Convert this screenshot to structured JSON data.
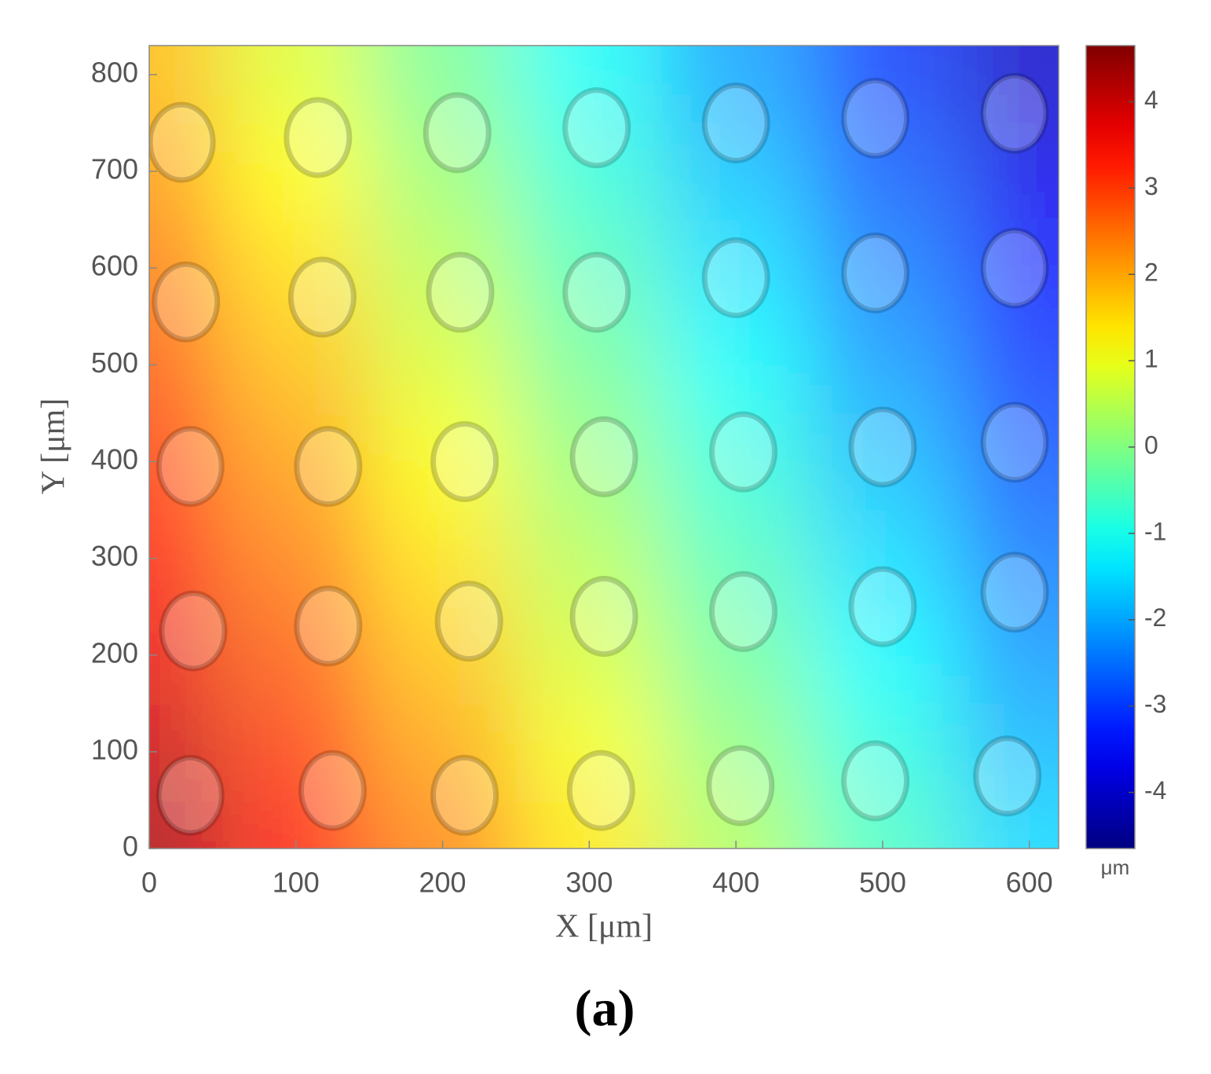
{
  "chart_data": {
    "type": "heatmap",
    "xlabel": "X [μm]",
    "ylabel": "Y [μm]",
    "caption": "(a)",
    "colorbar_label": "μm",
    "colormap": "jet",
    "x": [
      0,
      100,
      200,
      300,
      400,
      500,
      600
    ],
    "y": [
      0,
      100,
      200,
      300,
      400,
      500,
      600,
      700,
      800
    ],
    "values": [
      [
        4.3,
        3.33,
        2.36,
        1.39,
        0.42,
        -0.55,
        -1.52
      ],
      [
        3.99,
        3.02,
        2.05,
        1.08,
        0.11,
        -0.86,
        -1.83
      ],
      [
        3.68,
        2.71,
        1.74,
        0.77,
        -0.2,
        -1.17,
        -2.14
      ],
      [
        3.37,
        2.4,
        1.43,
        0.46,
        -0.51,
        -1.48,
        -2.45
      ],
      [
        3.06,
        2.09,
        1.12,
        0.15,
        -0.82,
        -1.79,
        -2.76
      ],
      [
        2.75,
        1.78,
        0.81,
        -0.16,
        -1.13,
        -2.1,
        -3.07
      ],
      [
        2.44,
        1.47,
        0.5,
        -0.47,
        -1.44,
        -2.41,
        -3.38
      ],
      [
        2.13,
        1.16,
        0.19,
        -0.78,
        -1.75,
        -2.72,
        -3.69
      ],
      [
        1.82,
        0.85,
        -0.12,
        -1.09,
        -2.06,
        -3.03,
        -4.0
      ]
    ],
    "pillars": {
      "x": [
        28,
        125,
        215,
        308,
        403,
        495,
        585,
        30,
        122,
        218,
        310,
        405,
        500,
        590,
        28,
        122,
        215,
        310,
        405,
        500,
        590,
        25,
        118,
        212,
        305,
        400,
        495,
        590,
        22,
        115,
        210,
        305,
        400,
        495,
        590
      ],
      "y": [
        55,
        60,
        55,
        60,
        65,
        70,
        75,
        225,
        230,
        235,
        240,
        245,
        250,
        265,
        395,
        395,
        400,
        405,
        410,
        415,
        420,
        565,
        570,
        575,
        575,
        590,
        595,
        600,
        730,
        735,
        740,
        745,
        750,
        755,
        760
      ]
    },
    "xlim": [
      0,
      620
    ],
    "ylim": [
      0,
      830
    ],
    "xticks": [
      0,
      100,
      200,
      300,
      400,
      500,
      600
    ],
    "yticks": [
      0,
      100,
      200,
      300,
      400,
      500,
      600,
      700,
      800
    ],
    "clim": [
      -4.65,
      4.65
    ],
    "cticks": [
      -4,
      -3,
      -2,
      -1,
      0,
      1,
      2,
      3,
      4
    ]
  }
}
